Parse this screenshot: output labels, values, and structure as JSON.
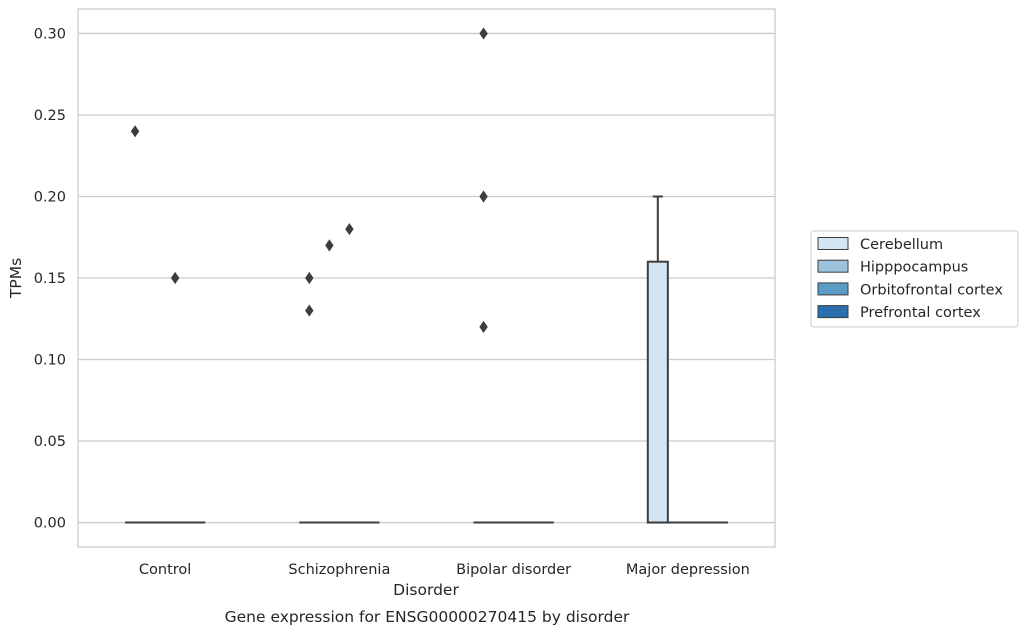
{
  "chart_data": {
    "type": "box",
    "caption": "Gene expression for ENSG00000270415 by disorder",
    "xlabel": "Disorder",
    "ylabel": "TPMs",
    "ylim": [
      -0.015,
      0.315
    ],
    "yticks": [
      0.0,
      0.05,
      0.1,
      0.15,
      0.2,
      0.25,
      0.3
    ],
    "ytick_labels": [
      "0.00",
      "0.05",
      "0.10",
      "0.15",
      "0.20",
      "0.25",
      "0.30"
    ],
    "grid": "horizontal",
    "legend_position": "right",
    "categories": [
      "Control",
      "Schizophrenia",
      "Bipolar disorder",
      "Major depression"
    ],
    "series": [
      {
        "name": "Cerebellum",
        "color": "#d3e4f3",
        "boxes": [
          {
            "q1": 0.0,
            "median": 0.0,
            "q3": 0.0,
            "whisker_low": 0.0,
            "whisker_high": 0.0,
            "outliers": [
              0.24
            ]
          },
          {
            "q1": 0.0,
            "median": 0.0,
            "q3": 0.0,
            "whisker_low": 0.0,
            "whisker_high": 0.0,
            "outliers": [
              0.15,
              0.13
            ]
          },
          {
            "q1": 0.0,
            "median": 0.0,
            "q3": 0.0,
            "whisker_low": 0.0,
            "whisker_high": 0.0,
            "outliers": [
              0.3,
              0.2,
              0.12
            ]
          },
          {
            "q1": 0.0,
            "median": 0.0,
            "q3": 0.16,
            "whisker_low": 0.0,
            "whisker_high": 0.2,
            "outliers": []
          }
        ]
      },
      {
        "name": "Hipppocampus",
        "color": "#9dc2dd",
        "boxes": [
          {
            "q1": 0.0,
            "median": 0.0,
            "q3": 0.0,
            "whisker_low": 0.0,
            "whisker_high": 0.0,
            "outliers": []
          },
          {
            "q1": 0.0,
            "median": 0.0,
            "q3": 0.0,
            "whisker_low": 0.0,
            "whisker_high": 0.0,
            "outliers": [
              0.17
            ]
          },
          {
            "q1": 0.0,
            "median": 0.0,
            "q3": 0.0,
            "whisker_low": 0.0,
            "whisker_high": 0.0,
            "outliers": []
          },
          {
            "q1": 0.0,
            "median": 0.0,
            "q3": 0.0,
            "whisker_low": 0.0,
            "whisker_high": 0.0,
            "outliers": []
          }
        ]
      },
      {
        "name": "Orbitofrontal cortex",
        "color": "#5b9cc6",
        "boxes": [
          {
            "q1": 0.0,
            "median": 0.0,
            "q3": 0.0,
            "whisker_low": 0.0,
            "whisker_high": 0.0,
            "outliers": [
              0.15
            ]
          },
          {
            "q1": 0.0,
            "median": 0.0,
            "q3": 0.0,
            "whisker_low": 0.0,
            "whisker_high": 0.0,
            "outliers": [
              0.18
            ]
          },
          {
            "q1": 0.0,
            "median": 0.0,
            "q3": 0.0,
            "whisker_low": 0.0,
            "whisker_high": 0.0,
            "outliers": []
          },
          {
            "q1": 0.0,
            "median": 0.0,
            "q3": 0.0,
            "whisker_low": 0.0,
            "whisker_high": 0.0,
            "outliers": []
          }
        ]
      },
      {
        "name": "Prefrontal cortex",
        "color": "#2a6fae",
        "boxes": [
          {
            "q1": 0.0,
            "median": 0.0,
            "q3": 0.0,
            "whisker_low": 0.0,
            "whisker_high": 0.0,
            "outliers": []
          },
          {
            "q1": 0.0,
            "median": 0.0,
            "q3": 0.0,
            "whisker_low": 0.0,
            "whisker_high": 0.0,
            "outliers": []
          },
          {
            "q1": 0.0,
            "median": 0.0,
            "q3": 0.0,
            "whisker_low": 0.0,
            "whisker_high": 0.0,
            "outliers": []
          },
          {
            "q1": 0.0,
            "median": 0.0,
            "q3": 0.0,
            "whisker_low": 0.0,
            "whisker_high": 0.0,
            "outliers": []
          }
        ]
      }
    ],
    "style_colors": {
      "grid": "#cccccc",
      "frame": "#cccccc",
      "box_edge": "#3d3d3d",
      "text": "#262626"
    }
  }
}
